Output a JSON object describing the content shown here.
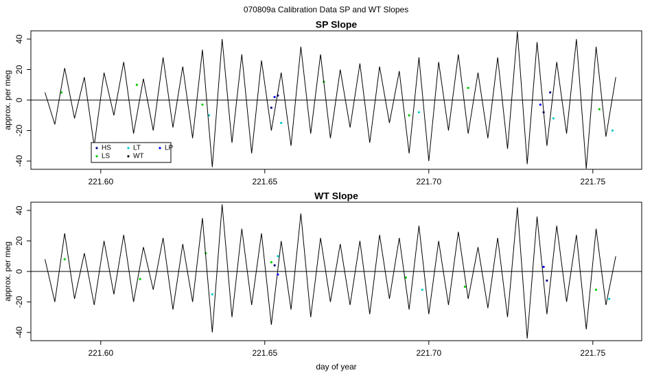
{
  "title": "070809a   Calibration Data SP and WT Slopes",
  "chart_data": [
    {
      "type": "line",
      "title": "SP Slope",
      "ylabel": "approx. per meg",
      "xlim": [
        221.5787,
        221.7649
      ],
      "ylim": [
        -45.4,
        45.4
      ],
      "xticks": [
        {
          "value": 221.6,
          "label": "221.60"
        },
        {
          "value": 221.65,
          "label": "221.65"
        },
        {
          "value": 221.7,
          "label": "221.70"
        },
        {
          "value": 221.75,
          "label": "221.75"
        }
      ],
      "yticks": [
        -40,
        -20,
        0,
        20,
        40
      ],
      "hline": 0,
      "legend": "bottom left",
      "series": [
        {
          "name": "HS",
          "color": "#000080",
          "style": "points",
          "x": [
            221.652,
            221.654,
            221.735,
            221.737
          ],
          "values": [
            -5,
            3,
            -8,
            5
          ]
        },
        {
          "name": "LS",
          "color": "#00cc00",
          "style": "points",
          "x": [
            221.588,
            221.611,
            221.631,
            221.668,
            221.694,
            221.712,
            221.752
          ],
          "values": [
            5,
            10,
            -3,
            12,
            -10,
            8,
            -6
          ]
        },
        {
          "name": "LT",
          "color": "#00cccc",
          "style": "points",
          "x": [
            221.633,
            221.655,
            221.697,
            221.738,
            221.756
          ],
          "values": [
            -10,
            -15,
            -8,
            -12,
            -20
          ]
        },
        {
          "name": "WT",
          "color": "#000000",
          "style": "line",
          "x": [
            221.583,
            221.586,
            221.589,
            221.592,
            221.595,
            221.598,
            221.601,
            221.604,
            221.607,
            221.61,
            221.613,
            221.616,
            221.619,
            221.622,
            221.625,
            221.628,
            221.631,
            221.634,
            221.637,
            221.64,
            221.643,
            221.646,
            221.649,
            221.652,
            221.655,
            221.658,
            221.661,
            221.664,
            221.667,
            221.67,
            221.673,
            221.676,
            221.679,
            221.682,
            221.685,
            221.688,
            221.691,
            221.694,
            221.697,
            221.7,
            221.703,
            221.706,
            221.709,
            221.712,
            221.715,
            221.718,
            221.721,
            221.724,
            221.727,
            221.73,
            221.733,
            221.736,
            221.739,
            221.742,
            221.745,
            221.748,
            221.751,
            221.754,
            221.757
          ],
          "values": [
            5,
            -16,
            21,
            -12,
            15,
            -30,
            18,
            -10,
            25,
            -22,
            14,
            -20,
            28,
            -18,
            22,
            -25,
            33,
            -44,
            40,
            -28,
            30,
            -35,
            26,
            -20,
            18,
            -30,
            35,
            -22,
            30,
            -25,
            20,
            -18,
            24,
            -28,
            22,
            -15,
            19,
            -35,
            28,
            -40,
            25,
            -20,
            30,
            -22,
            18,
            -25,
            28,
            -32,
            45,
            -42,
            38,
            -30,
            25,
            -22,
            40,
            -45,
            35,
            -24,
            15
          ]
        },
        {
          "name": "LP",
          "color": "#0000ff",
          "style": "points",
          "x": [
            221.653,
            221.734
          ],
          "values": [
            2,
            -3
          ]
        }
      ]
    },
    {
      "type": "line",
      "title": "WT Slope",
      "ylabel": "approx. per meg",
      "xlabel": "day of year",
      "xlim": [
        221.5787,
        221.7649
      ],
      "ylim": [
        -45.4,
        45.4
      ],
      "xticks": [
        {
          "value": 221.6,
          "label": "221.60"
        },
        {
          "value": 221.65,
          "label": "221.65"
        },
        {
          "value": 221.7,
          "label": "221.70"
        },
        {
          "value": 221.75,
          "label": "221.75"
        }
      ],
      "yticks": [
        -40,
        -20,
        0,
        20,
        40
      ],
      "hline": 0,
      "series": [
        {
          "name": "HS",
          "color": "#000080",
          "style": "points",
          "x": [
            221.653,
            221.736
          ],
          "values": [
            4,
            -6
          ]
        },
        {
          "name": "LS",
          "color": "#00cc00",
          "style": "points",
          "x": [
            221.589,
            221.612,
            221.632,
            221.652,
            221.693,
            221.711,
            221.751
          ],
          "values": [
            8,
            -5,
            12,
            6,
            -4,
            -10,
            -12
          ]
        },
        {
          "name": "LT",
          "color": "#00cccc",
          "style": "points",
          "x": [
            221.634,
            221.654,
            221.698,
            221.755
          ],
          "values": [
            -15,
            10,
            -12,
            -18
          ]
        },
        {
          "name": "WT",
          "color": "#000000",
          "style": "line",
          "x": [
            221.583,
            221.586,
            221.589,
            221.592,
            221.595,
            221.598,
            221.601,
            221.604,
            221.607,
            221.61,
            221.613,
            221.616,
            221.619,
            221.622,
            221.625,
            221.628,
            221.631,
            221.634,
            221.637,
            221.64,
            221.643,
            221.646,
            221.649,
            221.652,
            221.655,
            221.658,
            221.661,
            221.664,
            221.667,
            221.67,
            221.673,
            221.676,
            221.679,
            221.682,
            221.685,
            221.688,
            221.691,
            221.694,
            221.697,
            221.7,
            221.703,
            221.706,
            221.709,
            221.712,
            221.715,
            221.718,
            221.721,
            221.724,
            221.727,
            221.73,
            221.733,
            221.736,
            221.739,
            221.742,
            221.745,
            221.748,
            221.751,
            221.754,
            221.757
          ],
          "values": [
            8,
            -20,
            25,
            -18,
            12,
            -22,
            20,
            -15,
            24,
            -20,
            16,
            -12,
            22,
            -25,
            18,
            -20,
            35,
            -40,
            44,
            -30,
            28,
            -22,
            25,
            -35,
            20,
            -25,
            38,
            -30,
            22,
            -20,
            18,
            -22,
            20,
            -28,
            24,
            -18,
            22,
            -25,
            30,
            -28,
            20,
            -22,
            26,
            -18,
            16,
            -24,
            22,
            -30,
            42,
            -44,
            36,
            -28,
            30,
            -20,
            24,
            -38,
            28,
            -22,
            10
          ]
        },
        {
          "name": "LP",
          "color": "#0000ff",
          "style": "points",
          "x": [
            221.654,
            221.735
          ],
          "values": [
            -2,
            3
          ]
        }
      ]
    }
  ]
}
